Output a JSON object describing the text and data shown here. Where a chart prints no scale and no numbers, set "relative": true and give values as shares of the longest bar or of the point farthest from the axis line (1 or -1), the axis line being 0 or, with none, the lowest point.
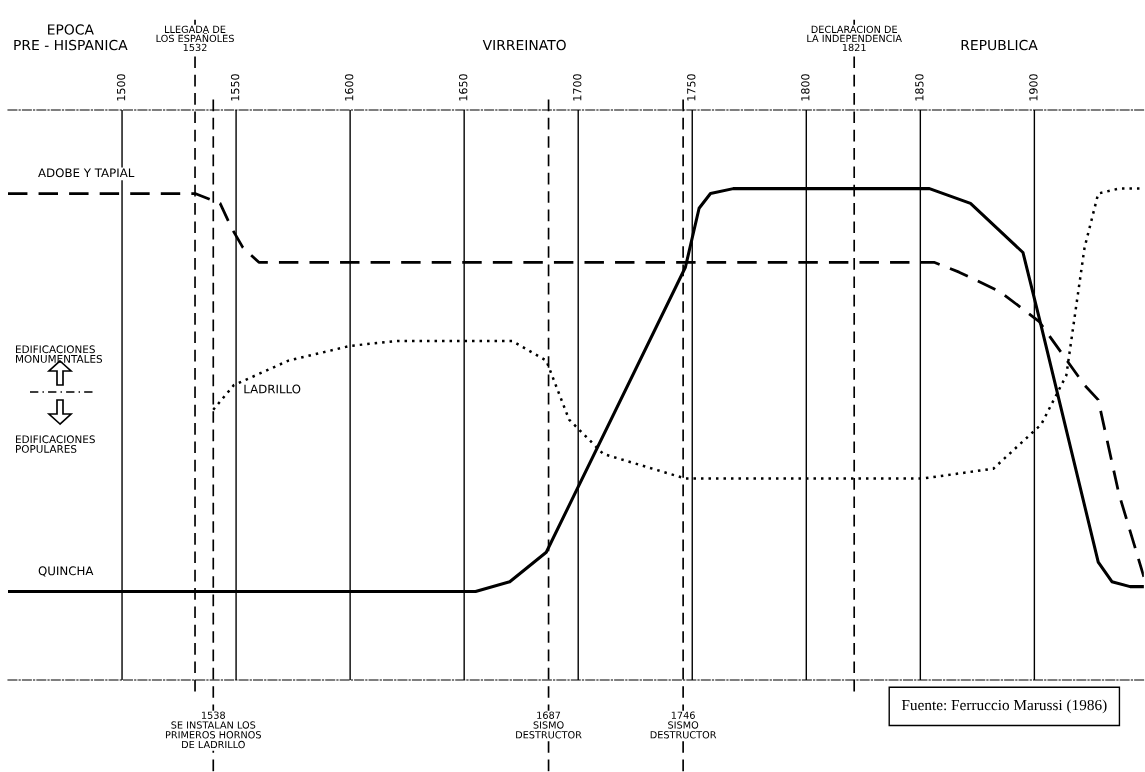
{
  "chart_data": {
    "type": "line",
    "relative": true,
    "xlim": [
      1450,
      1948
    ],
    "xticks": [
      1500,
      1550,
      1600,
      1650,
      1700,
      1750,
      1800,
      1850,
      1900
    ],
    "grid": "x",
    "legend": false,
    "series": [
      {
        "name": "ADOBE Y TAPIAL",
        "color": "#000000",
        "line_style": "dashed",
        "x": [
          1450,
          1532,
          1543,
          1548,
          1553,
          1560,
          1856,
          1867,
          1885,
          1902,
          1922,
          1928,
          1937,
          1948
        ],
        "values": [
          0.99,
          0.99,
          0.97,
          0.92,
          0.88,
          0.85,
          0.85,
          0.83,
          0.79,
          0.73,
          0.6,
          0.57,
          0.38,
          0.21
        ]
      },
      {
        "name": "LADRILLO",
        "color": "#000000",
        "line_style": "dotted",
        "x": [
          1540,
          1549,
          1573,
          1600,
          1621,
          1652,
          1671,
          1686,
          1696,
          1711,
          1747,
          1851,
          1882,
          1903,
          1914,
          1922,
          1928,
          1937,
          1948
        ],
        "values": [
          0.55,
          0.6,
          0.65,
          0.68,
          0.69,
          0.69,
          0.69,
          0.65,
          0.53,
          0.46,
          0.41,
          0.41,
          0.43,
          0.52,
          0.62,
          0.88,
          0.99,
          1.0,
          1.0
        ]
      },
      {
        "name": "QUINCHA",
        "color": "#000000",
        "line_style": "solid",
        "x": [
          1450,
          1655,
          1670,
          1686,
          1747,
          1753,
          1758,
          1768,
          1854,
          1872,
          1895,
          1903,
          1928,
          1934,
          1942,
          1948
        ],
        "values": [
          0.18,
          0.18,
          0.2,
          0.26,
          0.84,
          0.96,
          0.99,
          1.0,
          1.0,
          0.97,
          0.87,
          0.72,
          0.24,
          0.2,
          0.19,
          0.19
        ]
      }
    ],
    "ref_lines": [
      {
        "axis": "x",
        "value": 1532,
        "label": "LLEGADA DE\nLOS ESPAÑOLES\n1532",
        "line_style": "dashed"
      },
      {
        "axis": "x",
        "value": 1821,
        "label": "DECLARACION DE\nLA INDEPENDENCIA\n1821",
        "line_style": "dashed"
      },
      {
        "axis": "x",
        "value": 1540,
        "label": "1538\nSE INSTALAN LOS\nPRIMEROS HORNOS\nDE LADRILLO",
        "line_style": "dashed"
      },
      {
        "axis": "x",
        "value": 1687,
        "label": "1687\nSISMO\nDESTRUCTOR",
        "line_style": "dashed"
      },
      {
        "axis": "x",
        "value": 1746,
        "label": "1746\nSISMO\nDESTRUCTOR",
        "line_style": "dashed"
      }
    ],
    "annotations": [
      "EPOCA\nPRE - HISPANICA",
      "VIRREINATO",
      "REPUBLICA",
      "EDIFICACIONES\nMONUMENTALES",
      "EDIFICACIONES\nPOPULARES",
      "Fuente: Ferruccio Marussi (1986)"
    ]
  }
}
